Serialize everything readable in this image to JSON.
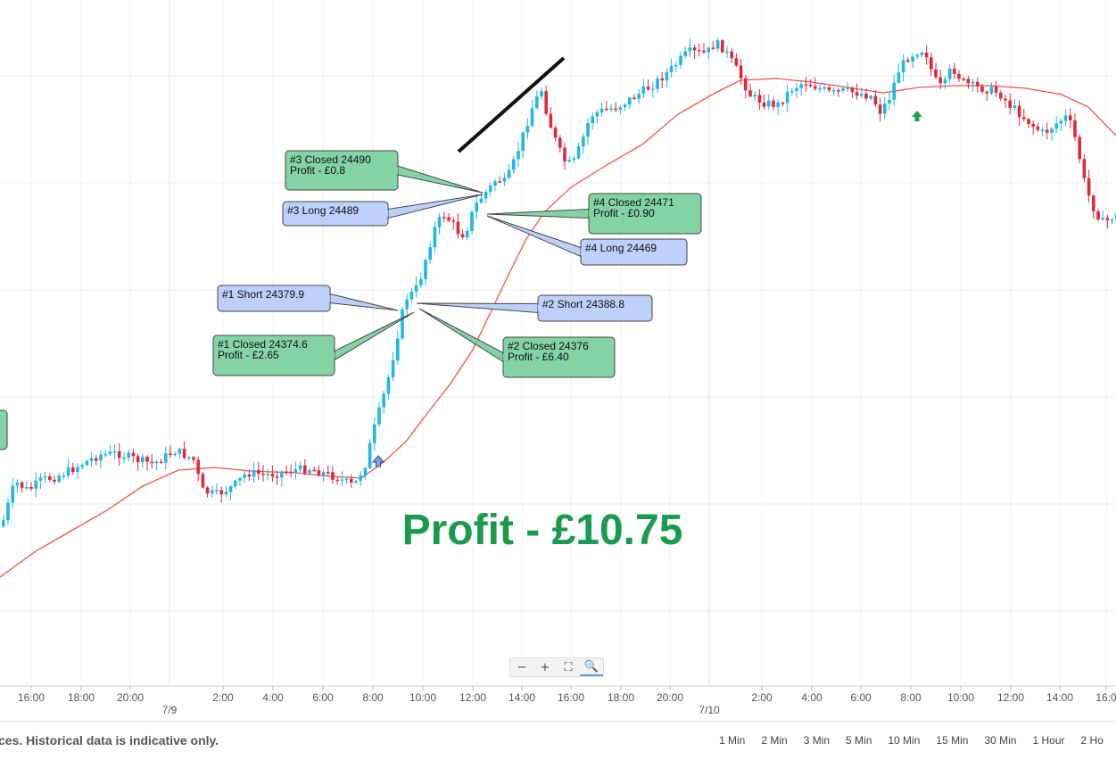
{
  "chart_data": {
    "type": "candlestick",
    "x_ticks": [
      "16:00",
      "18:00",
      "20:00",
      "2:00",
      "4:00",
      "6:00",
      "8:00",
      "10:00",
      "12:00",
      "14:00",
      "16:00",
      "18:00",
      "20:00",
      "2:00",
      "4:00",
      "6:00",
      "8:00",
      "10:00",
      "12:00",
      "14:00",
      "16:0"
    ],
    "x_dates": [
      "7/9",
      "7/10"
    ],
    "title": "",
    "xlabel": "",
    "ylabel": "",
    "grid": true,
    "colors": {
      "up": "#1fb6e8",
      "down": "#e0283a",
      "ma": "#f0524f",
      "long_callout": "#bcd0fa",
      "closed_callout": "#84d3a4",
      "profit": "#1a9a4e"
    },
    "annotations": [
      {
        "label": "#3 Closed 24490",
        "sub": "Profit - £0.8",
        "kind": "closed"
      },
      {
        "label": "#3 Long 24489",
        "sub": "",
        "kind": "entry"
      },
      {
        "label": "#4 Closed 24471",
        "sub": "Profit - £0.90",
        "kind": "closed"
      },
      {
        "label": "#4 Long 24469",
        "sub": "",
        "kind": "entry"
      },
      {
        "label": "#1 Short 24379.9",
        "sub": "",
        "kind": "entry"
      },
      {
        "label": "#2 Short 24388.8",
        "sub": "",
        "kind": "entry"
      },
      {
        "label": "#1 Closed 24374.6",
        "sub": "Profit - £2.65",
        "kind": "closed"
      },
      {
        "label": "#2 Closed 24376",
        "sub": "Profit - £6.40",
        "kind": "closed"
      }
    ],
    "profit_label": "Profit - £10.75"
  },
  "toolbar": {
    "zoom_out": "−",
    "zoom_in": "+",
    "fit": "⛶",
    "zoom_search": "🔍"
  },
  "footer": {
    "disclaimer": "ces. Historical data is indicative only.",
    "intervals": [
      "1 Min",
      "2 Min",
      "3 Min",
      "5 Min",
      "10 Min",
      "15 Min",
      "30 Min",
      "1 Hour",
      "2 Ho"
    ]
  }
}
